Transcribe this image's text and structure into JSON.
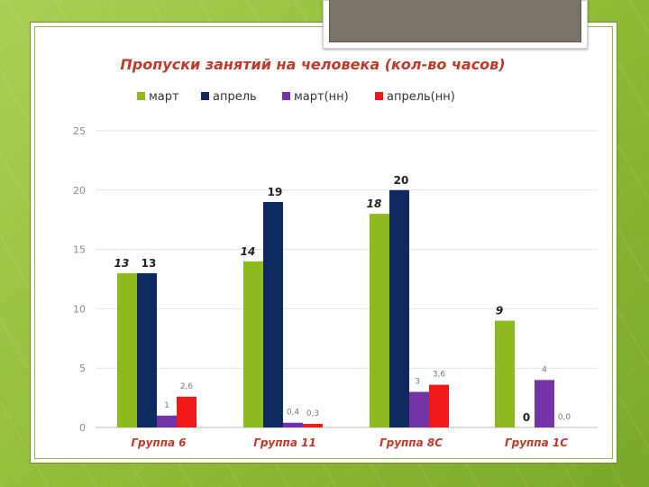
{
  "chart_data": {
    "type": "bar",
    "title": "Пропуски занятий на человека  (кол-во часов)",
    "ylim": [
      0,
      25
    ],
    "yticks": [
      "0",
      "5",
      "10",
      "15",
      "20",
      "25"
    ],
    "grid": true,
    "legend_position": "top",
    "categories": [
      "Группа 6",
      "Группа 11",
      "Группа 8С",
      "Группа 1С"
    ],
    "series": [
      {
        "name": "март",
        "color": "#8dbb1f",
        "values": [
          13,
          14,
          18,
          9
        ],
        "labels": [
          "13",
          "14",
          "18",
          "9"
        ]
      },
      {
        "name": "апрель",
        "color": "#0f2a5e",
        "values": [
          13,
          19,
          20,
          0
        ],
        "labels": [
          "13",
          "19",
          "20",
          "0"
        ]
      },
      {
        "name": "март(нн)",
        "color": "#7434a8",
        "values": [
          1,
          0.4,
          3,
          4
        ],
        "labels": [
          "1",
          "0,4",
          "3",
          "4"
        ]
      },
      {
        "name": "апрель(нн)",
        "color": "#f01818",
        "values": [
          2.6,
          0.3,
          3.6,
          0
        ],
        "labels": [
          "2,6",
          "0,3",
          "3,6",
          "0,0"
        ]
      }
    ]
  }
}
